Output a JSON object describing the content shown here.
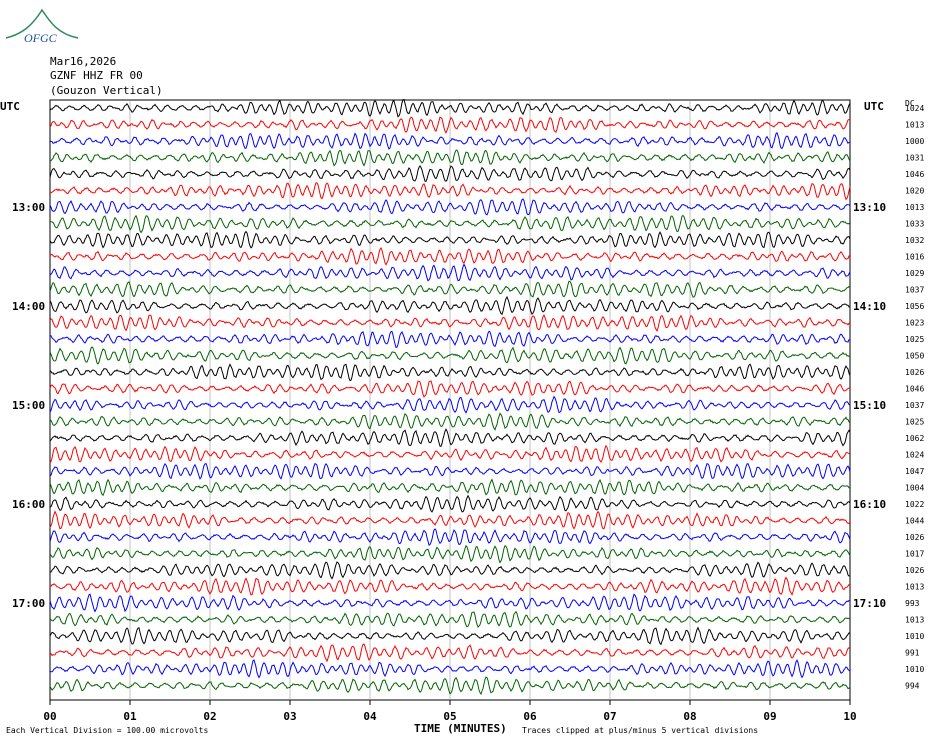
{
  "header": {
    "date": "Mar16,2026",
    "station": "GZNF HHZ FR 00",
    "site": "(Gouzon Vertical)"
  },
  "left_utc_label": "UTC",
  "right_utc_label": "UTC",
  "right_corner_label": "DC",
  "footer": {
    "xlabel": "TIME (MINUTES)",
    "division_note": "Each Vertical Division =  100.00 microvolts",
    "clip_note": "Traces clipped at plus/minus 5 vertical divisions"
  },
  "chart_data": {
    "type": "line",
    "title": "",
    "xlabel": "TIME (MINUTES)",
    "ylabel": "",
    "xlim": [
      0,
      10
    ],
    "x_ticks": [
      "00",
      "01",
      "02",
      "03",
      "04",
      "05",
      "06",
      "07",
      "08",
      "09",
      "10"
    ],
    "left_time_labels": [
      "13:00",
      "14:00",
      "15:00",
      "16:00",
      "17:00"
    ],
    "right_time_labels": [
      "13:10",
      "14:10",
      "15:10",
      "16:10",
      "17:10"
    ],
    "trace_colors": [
      "#000000",
      "#ff0000",
      "#0000ff",
      "#006400"
    ],
    "trace_count": 36,
    "dc_offsets": [
      "1024",
      "1013",
      "1000",
      "1031",
      "1046",
      "1020",
      "1013",
      "1033",
      "1032",
      "1016",
      "1029",
      "1037",
      "1056",
      "1023",
      "1025",
      "1050",
      "1026",
      "1046",
      "1037",
      "1025",
      "1062",
      "1024",
      "1047",
      "1004",
      "1022",
      "1044",
      "1026",
      "1017",
      "1026",
      "1013",
      "993",
      "1013",
      "1010",
      "991",
      "1010",
      "994"
    ]
  }
}
